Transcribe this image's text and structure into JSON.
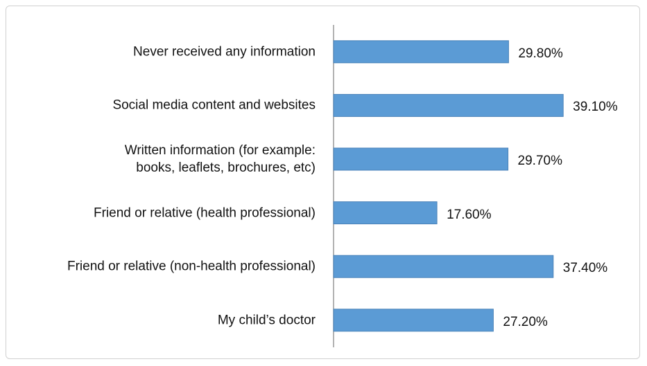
{
  "chart_data": {
    "type": "bar",
    "orientation": "horizontal",
    "categories": [
      "Never received any information",
      "Social media content and websites",
      "Written information (for example: books, leaflets, brochures, etc)",
      "Friend or relative (health professional)",
      "Friend or relative (non-health professional)",
      "My child’s doctor"
    ],
    "values": [
      29.8,
      39.1,
      29.7,
      17.6,
      37.4,
      27.2
    ],
    "value_labels": [
      "29.80%",
      "39.10%",
      "29.70%",
      "17.60%",
      "37.40%",
      "27.20%"
    ],
    "color": "#5b9bd5"
  }
}
